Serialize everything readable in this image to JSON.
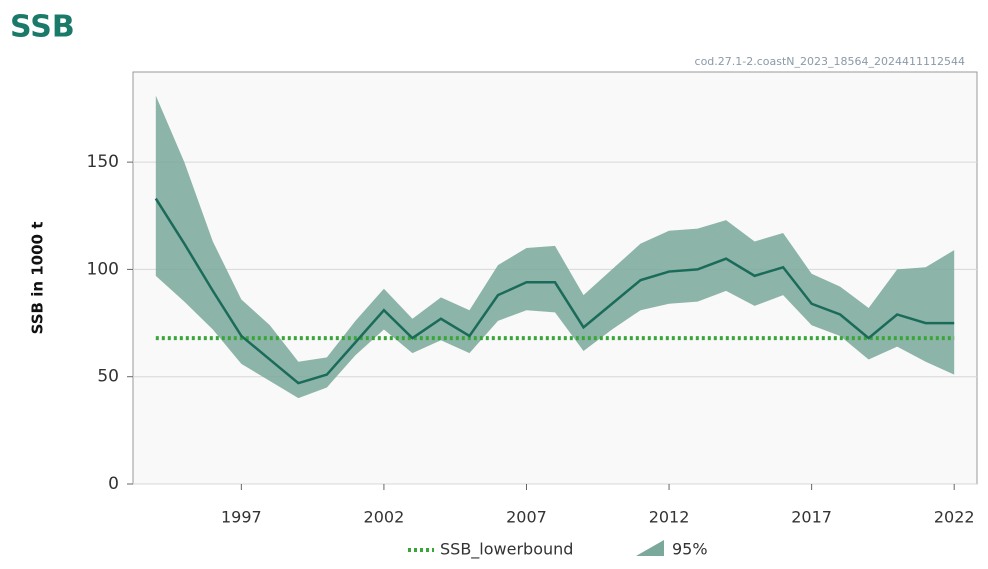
{
  "chart_data": {
    "type": "line",
    "title": "SSB",
    "subtitle": "cod.27.1-2.coastN_2023_18564_2024411112544",
    "ylabel": "SSB in 1000 t",
    "x": [
      1994,
      1995,
      1996,
      1997,
      1998,
      1999,
      2000,
      2001,
      2002,
      2003,
      2004,
      2005,
      2006,
      2007,
      2008,
      2009,
      2010,
      2011,
      2012,
      2013,
      2014,
      2015,
      2016,
      2017,
      2018,
      2019,
      2020,
      2021,
      2022
    ],
    "series": [
      {
        "color": "#1a6b5a",
        "values": [
          133,
          112,
          90,
          69,
          58,
          47,
          51,
          66,
          81,
          68,
          77,
          69,
          88,
          94,
          94,
          73,
          84,
          95,
          99,
          100,
          105,
          97,
          101,
          84,
          79,
          68,
          79,
          75,
          75
        ]
      }
    ],
    "band": {
      "name": "95%",
      "color": "#7aa89a",
      "high": [
        181,
        150,
        113,
        86,
        74,
        57,
        59,
        76,
        91,
        77,
        87,
        81,
        102,
        110,
        111,
        88,
        100,
        112,
        118,
        119,
        123,
        113,
        117,
        98,
        92,
        82,
        100,
        101,
        109
      ],
      "low": [
        97,
        85,
        72,
        56,
        48,
        40,
        45,
        60,
        72,
        61,
        67,
        61,
        76,
        81,
        80,
        62,
        72,
        81,
        84,
        85,
        90,
        83,
        88,
        74,
        69,
        58,
        64,
        57,
        51
      ]
    },
    "reference": {
      "name": "SSB_lowerbound",
      "value": 68,
      "color": "#3aa63a"
    },
    "xlim": [
      1993.2,
      2022.8
    ],
    "ylim": [
      0,
      192
    ],
    "xticks": [
      1997,
      2002,
      2007,
      2012,
      2017,
      2022
    ],
    "yticks": [
      0,
      50,
      100,
      150
    ],
    "grid": true
  }
}
